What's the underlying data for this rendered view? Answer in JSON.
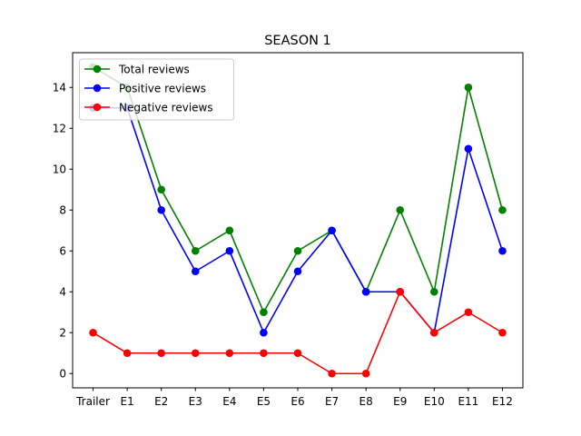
{
  "chart_data": {
    "type": "line",
    "title": "SEASON 1",
    "xlabel": "",
    "ylabel": "",
    "categories": [
      "Trailer",
      "E1",
      "E2",
      "E3",
      "E4",
      "E5",
      "E6",
      "E7",
      "E8",
      "E9",
      "E10",
      "E11",
      "E12"
    ],
    "ylim": [
      -0.7,
      15.7
    ],
    "yticks": [
      0,
      2,
      4,
      6,
      8,
      10,
      12,
      14
    ],
    "grid": false,
    "legend_position": "upper-left",
    "series": [
      {
        "name": "Total reviews",
        "color": "#008000",
        "values": [
          15,
          14,
          9,
          6,
          7,
          3,
          6,
          7,
          4,
          8,
          4,
          14,
          8
        ]
      },
      {
        "name": "Positive reviews",
        "color": "#0000ff",
        "values": [
          13,
          13,
          8,
          5,
          6,
          2,
          5,
          7,
          4,
          4,
          2,
          11,
          6
        ]
      },
      {
        "name": "Negative reviews",
        "color": "#ff0000",
        "values": [
          2,
          1,
          1,
          1,
          1,
          1,
          1,
          0,
          0,
          4,
          2,
          3,
          2
        ]
      }
    ]
  }
}
